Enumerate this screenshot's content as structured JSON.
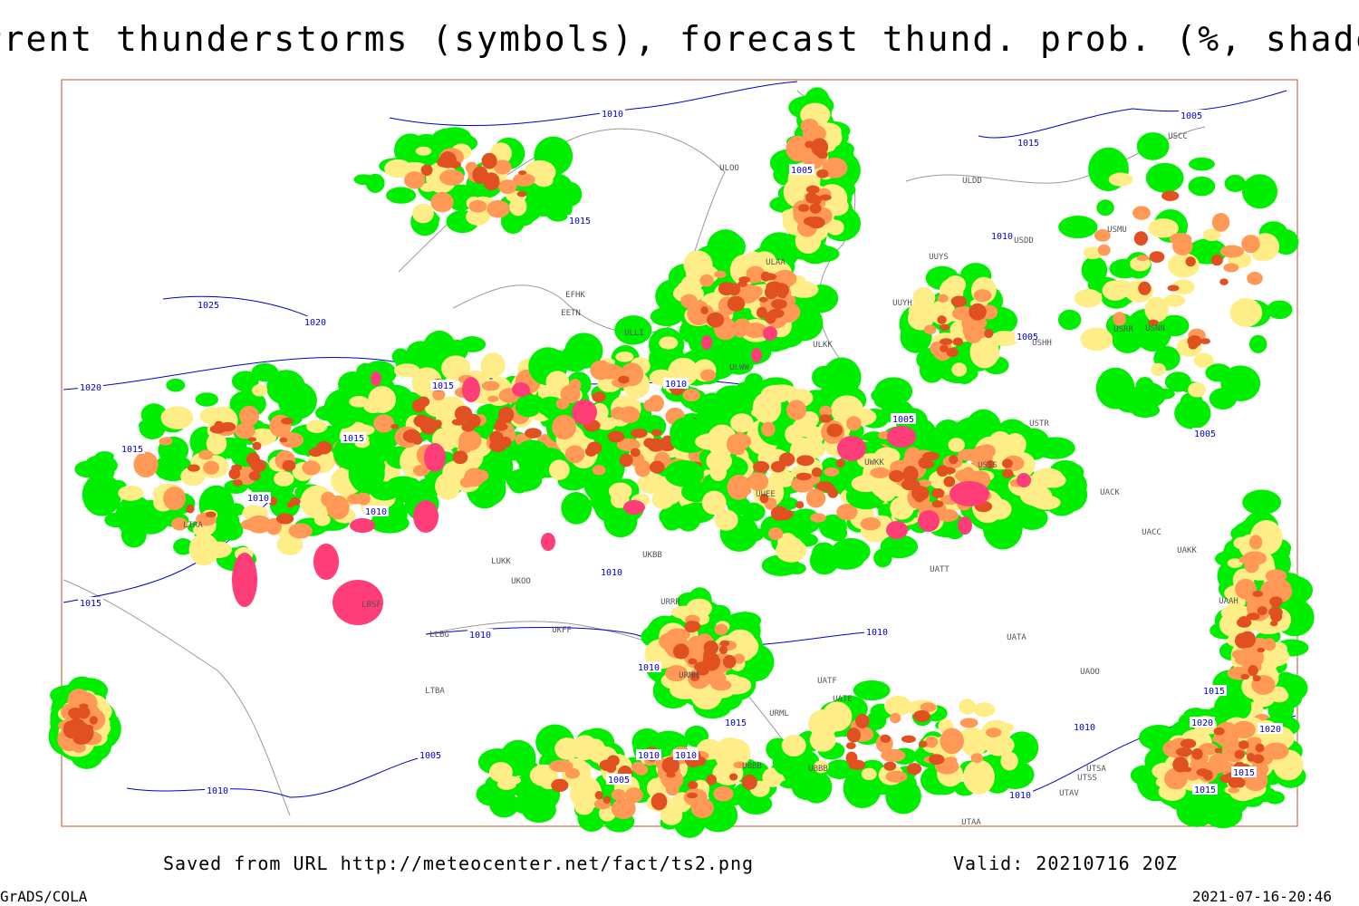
{
  "header": {
    "title": "Current thunderstorms (symbols), forecast thund. prob. (%, shaded)"
  },
  "map": {
    "isobar_labels": [
      1010,
      1005,
      1015,
      1005,
      1015,
      1010,
      1025,
      1020,
      1020,
      1015,
      1010,
      1005,
      1005,
      1015,
      1015,
      1010,
      1010,
      1005,
      1010,
      1015,
      1010,
      1010,
      1010,
      1015,
      1015,
      1020,
      1020,
      1010,
      1005,
      1010,
      1010,
      1005,
      1015,
      1015,
      1010,
      1010
    ],
    "station_labels": [
      "ULDD",
      "UUYS",
      "USDD",
      "USMU",
      "UUYH",
      "ULAA",
      "EFHK",
      "EETN",
      "ULKK",
      "USNN",
      "USRR",
      "USHH",
      "ULWW",
      "USTR",
      "USSS",
      "UACK",
      "UACC",
      "UAKK",
      "ULLI",
      "LIRA",
      "LUKK",
      "UKOO",
      "URRR",
      "LBSF",
      "UATT",
      "UAAH",
      "UATA",
      "URMM",
      "UATF",
      "UATE",
      "URML",
      "LTBA",
      "UBBB",
      "UTSA",
      "UTSS",
      "UTAV",
      "UTAA",
      "UAOO",
      "UKBB",
      "UKFF",
      "LLBG",
      "ULOO",
      "UWKK",
      "UUEE",
      "UBBB",
      "USCC"
    ]
  },
  "footer": {
    "source": "Saved from URL http://meteocenter.net/fact/ts2.png",
    "valid": "Valid: 20210716 20Z",
    "software": "GrADS/COLA",
    "timestamp": "2021-07-16-20:46"
  }
}
